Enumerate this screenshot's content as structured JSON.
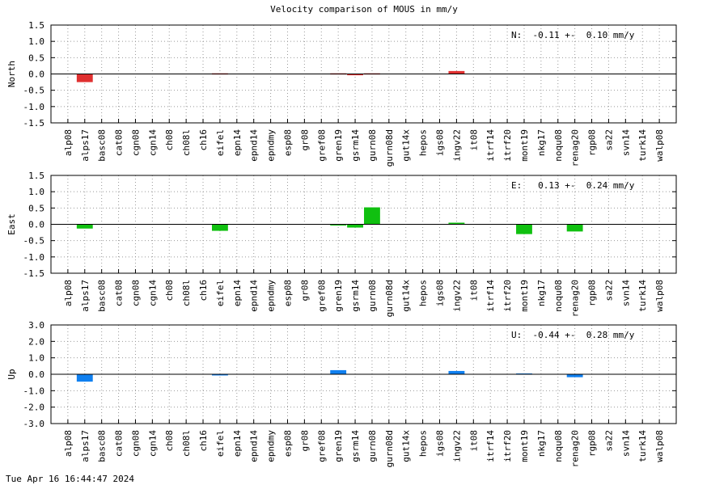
{
  "page": {
    "title": "Velocity comparison of MOUS in mm/y",
    "timestamp": "Tue Apr 16 16:44:47 2024"
  },
  "chart_data": [
    {
      "type": "bar",
      "ylabel": "North",
      "ylim": [
        -1.5,
        1.5
      ],
      "yticks": [
        "1.5",
        "1.0",
        "0.5",
        "0.0",
        "-0.5",
        "-1.0",
        "-1.5"
      ],
      "grid": true,
      "color": "#e03030",
      "annotation": "N:  -0.11 +-  0.10 mm/y",
      "categories": [
        "alp08",
        "alps17",
        "basc08",
        "cat08",
        "cgn08",
        "cgn14",
        "ch08",
        "ch08l",
        "ch16",
        "eifel",
        "epn14",
        "epnd14",
        "epndmy",
        "esp08",
        "gr08",
        "gref08",
        "gren19",
        "gsrm14",
        "gurn08",
        "gurn08d",
        "gut14x",
        "hepos",
        "igs08",
        "ingv22",
        "it08",
        "itrf14",
        "itrf20",
        "mont19",
        "nkg17",
        "noqu08",
        "renag20",
        "rgp08",
        "sa22",
        "svn14",
        "turk14",
        "walp08"
      ],
      "values": [
        0,
        -0.25,
        0,
        0,
        0,
        0,
        0,
        0,
        0,
        0.02,
        0,
        0,
        0,
        0,
        0,
        0,
        0.02,
        -0.04,
        0.02,
        0,
        0,
        0,
        0,
        0.09,
        0,
        0,
        0,
        0,
        0,
        0,
        0,
        0,
        0,
        0,
        0,
        0
      ]
    },
    {
      "type": "bar",
      "ylabel": "East",
      "ylim": [
        -1.5,
        1.5
      ],
      "yticks": [
        "1.5",
        "1.0",
        "0.5",
        "0.0",
        "-0.5",
        "-1.0",
        "-1.5"
      ],
      "grid": true,
      "color": "#10c010",
      "annotation": "E:   0.13 +-  0.24 mm/y",
      "categories": [
        "alp08",
        "alps17",
        "basc08",
        "cat08",
        "cgn08",
        "cgn14",
        "ch08",
        "ch08l",
        "ch16",
        "eifel",
        "epn14",
        "epnd14",
        "epndmy",
        "esp08",
        "gr08",
        "gref08",
        "gren19",
        "gsrm14",
        "gurn08",
        "gurn08d",
        "gut14x",
        "hepos",
        "igs08",
        "ingv22",
        "it08",
        "itrf14",
        "itrf20",
        "mont19",
        "nkg17",
        "noqu08",
        "renag20",
        "rgp08",
        "sa22",
        "svn14",
        "turk14",
        "walp08"
      ],
      "values": [
        0,
        -0.13,
        0,
        0,
        0,
        0,
        0,
        0,
        0,
        -0.2,
        0,
        0,
        0,
        0,
        0,
        0,
        -0.03,
        -0.1,
        0.52,
        0,
        0,
        0,
        0,
        0.05,
        0,
        0,
        0,
        -0.3,
        0,
        0,
        -0.22,
        0,
        0,
        0,
        0,
        0
      ]
    },
    {
      "type": "bar",
      "ylabel": "Up",
      "ylim": [
        -3.0,
        3.0
      ],
      "yticks": [
        "3.0",
        "2.0",
        "1.0",
        "0.0",
        "-1.0",
        "-2.0",
        "-3.0"
      ],
      "grid": true,
      "color": "#1080f0",
      "annotation": "U:  -0.44 +-  0.28 mm/y",
      "categories": [
        "alp08",
        "alps17",
        "basc08",
        "cat08",
        "cgn08",
        "cgn14",
        "ch08",
        "ch08l",
        "ch16",
        "eifel",
        "epn14",
        "epnd14",
        "epndmy",
        "esp08",
        "gr08",
        "gref08",
        "gren19",
        "gsrm14",
        "gurn08",
        "gurn08d",
        "gut14x",
        "hepos",
        "igs08",
        "ingv22",
        "it08",
        "itrf14",
        "itrf20",
        "mont19",
        "nkg17",
        "noqu08",
        "renag20",
        "rgp08",
        "sa22",
        "svn14",
        "turk14",
        "walp08"
      ],
      "values": [
        0,
        -0.45,
        0,
        0,
        0,
        0,
        0,
        0,
        0,
        -0.06,
        0,
        0,
        0,
        0,
        0,
        0,
        0.25,
        0,
        0,
        0,
        0,
        0,
        0,
        0.2,
        0,
        0,
        0,
        0.05,
        0,
        0,
        -0.18,
        0,
        0,
        0,
        0,
        0
      ]
    }
  ]
}
